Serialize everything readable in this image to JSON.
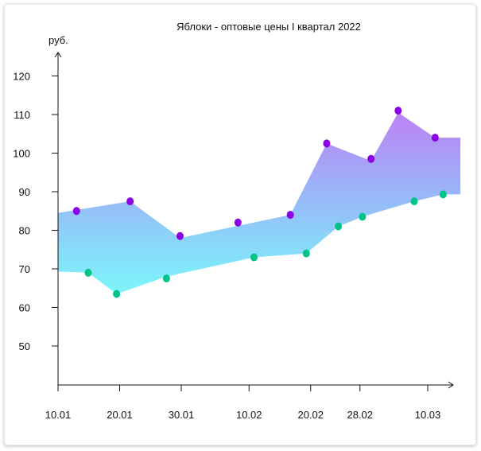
{
  "chart_data": {
    "type": "area",
    "title": "Яблоки - оптовые цены I квартал 2022",
    "ylabel": "руб.",
    "xlabel": "",
    "ylim": [
      40,
      120
    ],
    "y_ticks": [
      50,
      60,
      70,
      80,
      90,
      100,
      110,
      120
    ],
    "x_tick_labels": [
      "10.01",
      "20.01",
      "30.01",
      "10.02",
      "20.02",
      "28.02",
      "10.03"
    ],
    "x_tick_days": [
      0,
      10,
      20,
      31,
      41,
      49,
      60
    ],
    "series": [
      {
        "color": "#8b00e6",
        "points": [
          {
            "x": 3,
            "y": 85
          },
          {
            "x": 11.7,
            "y": 87.5
          },
          {
            "x": 19.8,
            "y": 78.5
          },
          {
            "x": 29.2,
            "y": 82
          },
          {
            "x": 37.7,
            "y": 84
          },
          {
            "x": 43.6,
            "y": 102.5
          },
          {
            "x": 50.8,
            "y": 98.5
          },
          {
            "x": 55.2,
            "y": 111
          },
          {
            "x": 61.2,
            "y": 104
          }
        ]
      },
      {
        "color": "#00c389",
        "points": [
          {
            "x": 4.9,
            "y": 69
          },
          {
            "x": 9.5,
            "y": 63.5
          },
          {
            "x": 17.6,
            "y": 67.5
          },
          {
            "x": 31.8,
            "y": 73
          },
          {
            "x": 40.3,
            "y": 74
          },
          {
            "x": 45.5,
            "y": 81
          },
          {
            "x": 49.4,
            "y": 83.5
          },
          {
            "x": 57.8,
            "y": 87.5
          },
          {
            "x": 62.5,
            "y": 89.3
          }
        ]
      }
    ],
    "band": {
      "upper": [
        {
          "x": 0,
          "y": 84.5
        },
        {
          "x": 11.7,
          "y": 87.5
        },
        {
          "x": 19.8,
          "y": 78
        },
        {
          "x": 37.7,
          "y": 84
        },
        {
          "x": 43.6,
          "y": 102.5
        },
        {
          "x": 50.8,
          "y": 98
        },
        {
          "x": 55.2,
          "y": 110.5
        },
        {
          "x": 61.2,
          "y": 104
        },
        {
          "x": 65.3,
          "y": 104
        }
      ],
      "lower": [
        {
          "x": 0,
          "y": 69.3
        },
        {
          "x": 4.9,
          "y": 69
        },
        {
          "x": 9.5,
          "y": 63.5
        },
        {
          "x": 17.6,
          "y": 68
        },
        {
          "x": 31.8,
          "y": 73
        },
        {
          "x": 40.3,
          "y": 74
        },
        {
          "x": 45.5,
          "y": 81
        },
        {
          "x": 49.4,
          "y": 83.5
        },
        {
          "x": 57.8,
          "y": 87.5
        },
        {
          "x": 62.5,
          "y": 89.3
        },
        {
          "x": 65.3,
          "y": 89.3
        }
      ],
      "gradient_top": "#bf7df5",
      "gradient_mid": "#98b8f8",
      "gradient_bottom": "#7ef1fa"
    },
    "axis_color": "#111111",
    "grid": false,
    "legend": "none"
  }
}
